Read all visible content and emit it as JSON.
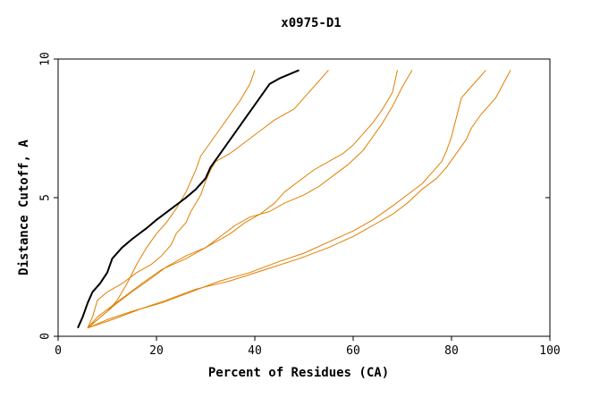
{
  "chart_data": {
    "type": "line",
    "title": "x0975-D1",
    "xlabel": "Percent of Residues (CA)",
    "ylabel": "Distance Cutoff, A",
    "xlim": [
      0,
      100
    ],
    "ylim": [
      0,
      10
    ],
    "x_ticks": [
      "0",
      "20",
      "40",
      "60",
      "80",
      "100"
    ],
    "y_ticks": [
      "0",
      "5",
      "10"
    ],
    "grid": false,
    "legend": "none",
    "colors": {
      "highlight": "#000000",
      "others": "#e07f00"
    },
    "series": [
      {
        "highlight": true,
        "points": [
          [
            4,
            0.3
          ],
          [
            5,
            0.7
          ],
          [
            6,
            1.2
          ],
          [
            7,
            1.6
          ],
          [
            8.5,
            1.9
          ],
          [
            10,
            2.3
          ],
          [
            11,
            2.8
          ],
          [
            13,
            3.2
          ],
          [
            15,
            3.5
          ],
          [
            18,
            3.9
          ],
          [
            20,
            4.2
          ],
          [
            23,
            4.6
          ],
          [
            26,
            5.0
          ],
          [
            28,
            5.3
          ],
          [
            30,
            5.7
          ],
          [
            31,
            6.1
          ],
          [
            33,
            6.6
          ],
          [
            35,
            7.1
          ],
          [
            37,
            7.6
          ],
          [
            39,
            8.1
          ],
          [
            41,
            8.6
          ],
          [
            43,
            9.1
          ],
          [
            45,
            9.3
          ],
          [
            49,
            9.6
          ]
        ]
      },
      {
        "highlight": false,
        "points": [
          [
            6,
            0.3
          ],
          [
            8,
            0.6
          ],
          [
            10,
            0.9
          ],
          [
            12,
            1.3
          ],
          [
            14,
            1.9
          ],
          [
            16,
            2.6
          ],
          [
            18,
            3.2
          ],
          [
            20,
            3.7
          ],
          [
            22,
            4.1
          ],
          [
            24,
            4.6
          ],
          [
            26,
            5.2
          ],
          [
            27,
            5.6
          ],
          [
            28,
            6.0
          ],
          [
            29,
            6.5
          ],
          [
            31,
            7.0
          ],
          [
            33,
            7.5
          ],
          [
            35,
            8.0
          ],
          [
            37,
            8.5
          ],
          [
            39,
            9.1
          ],
          [
            40,
            9.6
          ]
        ]
      },
      {
        "highlight": false,
        "points": [
          [
            6,
            0.3
          ],
          [
            7,
            0.7
          ],
          [
            8,
            1.3
          ],
          [
            10,
            1.6
          ],
          [
            13,
            1.9
          ],
          [
            16,
            2.3
          ],
          [
            19,
            2.6
          ],
          [
            21,
            2.9
          ],
          [
            23,
            3.3
          ],
          [
            24,
            3.7
          ],
          [
            26,
            4.1
          ],
          [
            27,
            4.5
          ],
          [
            29,
            5.1
          ],
          [
            30,
            5.6
          ],
          [
            31,
            6.0
          ],
          [
            32,
            6.3
          ],
          [
            35,
            6.6
          ],
          [
            38,
            7.0
          ],
          [
            41,
            7.4
          ],
          [
            44,
            7.8
          ],
          [
            48,
            8.2
          ],
          [
            51,
            8.8
          ],
          [
            55,
            9.6
          ]
        ]
      },
      {
        "highlight": false,
        "points": [
          [
            6,
            0.3
          ],
          [
            8,
            0.7
          ],
          [
            11,
            1.1
          ],
          [
            14,
            1.5
          ],
          [
            17,
            1.9
          ],
          [
            21,
            2.4
          ],
          [
            26,
            2.8
          ],
          [
            31,
            3.3
          ],
          [
            35,
            3.7
          ],
          [
            38,
            4.1
          ],
          [
            41,
            4.4
          ],
          [
            44,
            4.8
          ],
          [
            46,
            5.2
          ],
          [
            49,
            5.6
          ],
          [
            52,
            6.0
          ],
          [
            55,
            6.3
          ],
          [
            58,
            6.6
          ],
          [
            60,
            6.9
          ],
          [
            62,
            7.3
          ],
          [
            64,
            7.7
          ],
          [
            66,
            8.2
          ],
          [
            68,
            8.8
          ],
          [
            69,
            9.6
          ]
        ]
      },
      {
        "highlight": false,
        "points": [
          [
            6,
            0.3
          ],
          [
            8,
            0.6
          ],
          [
            10,
            0.9
          ],
          [
            12,
            1.2
          ],
          [
            15,
            1.6
          ],
          [
            19,
            2.1
          ],
          [
            22,
            2.5
          ],
          [
            26,
            2.9
          ],
          [
            30,
            3.2
          ],
          [
            33,
            3.6
          ],
          [
            36,
            4.0
          ],
          [
            39,
            4.3
          ],
          [
            43,
            4.5
          ],
          [
            46,
            4.8
          ],
          [
            50,
            5.1
          ],
          [
            53,
            5.4
          ],
          [
            56,
            5.8
          ],
          [
            59,
            6.2
          ],
          [
            62,
            6.7
          ],
          [
            64,
            7.2
          ],
          [
            66,
            7.7
          ],
          [
            68,
            8.3
          ],
          [
            70,
            9.0
          ],
          [
            72,
            9.6
          ]
        ]
      },
      {
        "highlight": false,
        "points": [
          [
            6,
            0.3
          ],
          [
            10,
            0.6
          ],
          [
            15,
            0.9
          ],
          [
            21,
            1.2
          ],
          [
            27,
            1.6
          ],
          [
            33,
            2.0
          ],
          [
            39,
            2.3
          ],
          [
            45,
            2.7
          ],
          [
            50,
            3.0
          ],
          [
            55,
            3.4
          ],
          [
            60,
            3.8
          ],
          [
            64,
            4.2
          ],
          [
            68,
            4.7
          ],
          [
            71,
            5.1
          ],
          [
            74,
            5.5
          ],
          [
            76,
            5.9
          ],
          [
            78,
            6.3
          ],
          [
            79,
            6.7
          ],
          [
            80,
            7.2
          ],
          [
            81,
            7.9
          ],
          [
            82,
            8.6
          ],
          [
            84,
            9.0
          ],
          [
            87,
            9.6
          ]
        ]
      },
      {
        "highlight": false,
        "points": [
          [
            6,
            0.3
          ],
          [
            11,
            0.6
          ],
          [
            17,
            1.0
          ],
          [
            22,
            1.3
          ],
          [
            28,
            1.7
          ],
          [
            35,
            2.0
          ],
          [
            42,
            2.4
          ],
          [
            49,
            2.8
          ],
          [
            55,
            3.2
          ],
          [
            60,
            3.6
          ],
          [
            64,
            4.0
          ],
          [
            68,
            4.4
          ],
          [
            71,
            4.8
          ],
          [
            74,
            5.3
          ],
          [
            77,
            5.7
          ],
          [
            79,
            6.1
          ],
          [
            81,
            6.6
          ],
          [
            83,
            7.1
          ],
          [
            84,
            7.5
          ],
          [
            86,
            8.0
          ],
          [
            89,
            8.6
          ],
          [
            92,
            9.6
          ]
        ]
      }
    ]
  }
}
